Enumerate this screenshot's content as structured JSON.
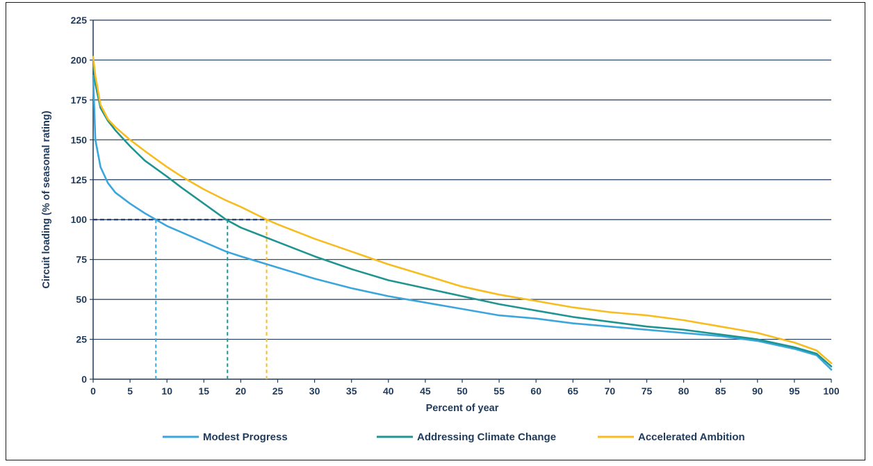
{
  "chart_data": {
    "type": "line",
    "xlabel": "Percent of year",
    "ylabel": "Circuit loading (% of seasonal rating)",
    "xlim": [
      0,
      100
    ],
    "ylim": [
      0,
      225
    ],
    "x_ticks": [
      0,
      5,
      10,
      15,
      20,
      25,
      30,
      35,
      40,
      45,
      50,
      55,
      60,
      65,
      70,
      75,
      80,
      85,
      90,
      95,
      100
    ],
    "y_ticks": [
      0,
      25,
      50,
      75,
      100,
      125,
      150,
      175,
      200,
      225
    ],
    "grid": "horizontal",
    "legend_position": "bottom",
    "threshold": {
      "y": 100,
      "color": "#1f3a6e"
    },
    "series": [
      {
        "name": "Modest Progress",
        "color": "#3aa6dc",
        "x": [
          0,
          0.3,
          1,
          2,
          3,
          5,
          7,
          8.5,
          10,
          12,
          15,
          18,
          20,
          25,
          30,
          35,
          40,
          45,
          50,
          55,
          60,
          65,
          70,
          75,
          80,
          85,
          90,
          95,
          98,
          100
        ],
        "y": [
          190,
          150,
          133,
          123,
          117,
          110,
          104,
          100,
          96,
          92,
          86,
          80,
          77,
          70,
          63,
          57,
          52,
          48,
          44,
          40,
          38,
          35,
          33,
          31,
          29,
          27,
          24,
          19,
          15,
          6
        ],
        "crossing_x": 8.5
      },
      {
        "name": "Addressing Climate Change",
        "color": "#1f9490",
        "x": [
          0,
          0.3,
          1,
          2,
          3,
          5,
          7,
          10,
          12,
          15,
          18,
          20,
          25,
          30,
          35,
          40,
          45,
          50,
          55,
          60,
          65,
          70,
          75,
          80,
          85,
          90,
          95,
          98,
          100
        ],
        "y": [
          200,
          185,
          170,
          162,
          156,
          146,
          137,
          127,
          120,
          110,
          100,
          95,
          86,
          77,
          69,
          62,
          57,
          52,
          47,
          43,
          39,
          36,
          33,
          31,
          28,
          25,
          20,
          16,
          8
        ],
        "crossing_x": 18.2
      },
      {
        "name": "Accelerated Ambition",
        "color": "#f7bc1e",
        "x": [
          0,
          0.3,
          1,
          2,
          3,
          5,
          7,
          10,
          12,
          15,
          18,
          20,
          23.5,
          25,
          30,
          35,
          40,
          45,
          50,
          55,
          60,
          65,
          70,
          75,
          80,
          85,
          90,
          95,
          98,
          100
        ],
        "y": [
          202,
          190,
          172,
          163,
          158,
          150,
          143,
          133,
          127,
          119,
          112,
          108,
          100,
          97,
          88,
          80,
          72,
          65,
          58,
          53,
          49,
          45,
          42,
          40,
          37,
          33,
          29,
          23,
          18,
          10
        ],
        "crossing_x": 23.5
      }
    ]
  }
}
